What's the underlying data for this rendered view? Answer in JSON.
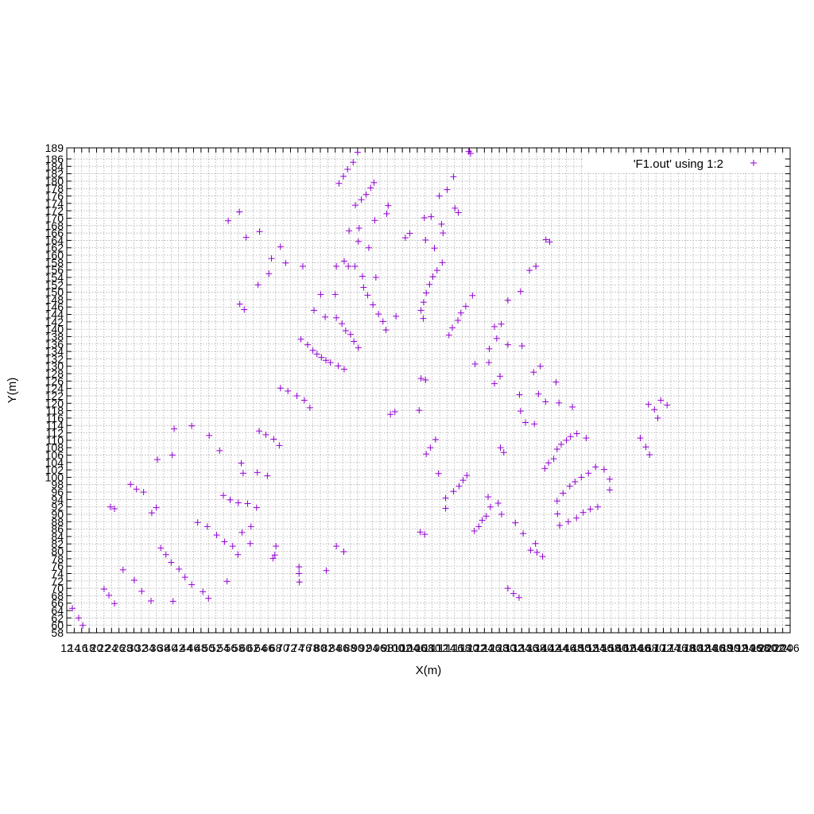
{
  "chart_data": {
    "type": "scatter",
    "title": "",
    "xlabel": "X(m)",
    "ylabel": "Y(m)",
    "xlim": [
      12,
      206
    ],
    "ylim": [
      58,
      189
    ],
    "x_ticks_start": 12,
    "x_ticks_step": 2,
    "y_ticks": [
      58,
      60,
      62,
      64,
      66,
      68,
      70,
      72,
      74,
      76,
      78,
      80,
      82,
      84,
      86,
      88,
      90,
      92,
      94,
      96,
      98,
      100,
      102,
      104,
      106,
      108,
      110,
      112,
      114,
      116,
      118,
      120,
      122,
      124,
      126,
      128,
      130,
      132,
      134,
      136,
      138,
      140,
      142,
      144,
      146,
      148,
      150,
      152,
      154,
      156,
      158,
      160,
      162,
      164,
      166,
      168,
      170,
      172,
      174,
      176,
      178,
      180,
      182,
      184,
      186,
      189
    ],
    "grid": true,
    "legend": {
      "position": "top-right",
      "entries": [
        "'F1.out' using 1:2"
      ]
    },
    "colors": {
      "series": "#9400d3",
      "grid": "#a0a0a0"
    },
    "series": [
      {
        "name": "'F1.out' using 1:2",
        "marker": "plus",
        "points": [
          [
            13.5,
            64.6
          ],
          [
            15.2,
            62.0
          ],
          [
            16.3,
            60.0
          ],
          [
            22.0,
            69.8
          ],
          [
            23.3,
            68.1
          ],
          [
            23.7,
            92.0
          ],
          [
            24.8,
            91.5
          ],
          [
            24.8,
            65.9
          ],
          [
            27.1,
            75.0
          ],
          [
            29.1,
            98.1
          ],
          [
            30.1,
            72.2
          ],
          [
            30.7,
            96.8
          ],
          [
            32.1,
            69.2
          ],
          [
            32.6,
            96.0
          ],
          [
            34.6,
            66.6
          ],
          [
            34.8,
            90.4
          ],
          [
            36.0,
            91.8
          ],
          [
            36.3,
            104.8
          ],
          [
            37.2,
            80.9
          ],
          [
            38.6,
            79.1
          ],
          [
            40.0,
            77.0
          ],
          [
            40.3,
            106.0
          ],
          [
            40.5,
            66.5
          ],
          [
            40.8,
            113.1
          ],
          [
            42.1,
            75.2
          ],
          [
            43.7,
            73.0
          ],
          [
            45.5,
            113.9
          ],
          [
            45.5,
            71.0
          ],
          [
            47.1,
            87.8
          ],
          [
            48.5,
            69.1
          ],
          [
            49.7,
            86.7
          ],
          [
            50.0,
            67.3
          ],
          [
            50.2,
            111.3
          ],
          [
            52.2,
            84.4
          ],
          [
            53.0,
            107.2
          ],
          [
            54.0,
            95.1
          ],
          [
            54.3,
            82.6
          ],
          [
            55.0,
            71.9
          ],
          [
            55.3,
            169.3
          ],
          [
            55.8,
            93.9
          ],
          [
            56.5,
            81.4
          ],
          [
            57.9,
            79.1
          ],
          [
            58.0,
            93.1
          ],
          [
            58.3,
            171.7
          ],
          [
            58.4,
            146.8
          ],
          [
            58.8,
            103.8
          ],
          [
            59.0,
            85.1
          ],
          [
            59.3,
            101.1
          ],
          [
            59.6,
            145.3
          ],
          [
            60.1,
            164.8
          ],
          [
            60.5,
            92.9
          ],
          [
            61.2,
            82.1
          ],
          [
            61.4,
            86.7
          ],
          [
            62.9,
            91.8
          ],
          [
            63.1,
            101.3
          ],
          [
            63.3,
            152.0
          ],
          [
            63.6,
            112.5
          ],
          [
            63.7,
            166.4
          ],
          [
            65.4,
            111.5
          ],
          [
            65.8,
            100.4
          ],
          [
            66.2,
            155.0
          ],
          [
            66.9,
            159.1
          ],
          [
            67.3,
            78.1
          ],
          [
            67.5,
            110.3
          ],
          [
            67.8,
            79.0
          ],
          [
            68.1,
            81.4
          ],
          [
            69.0,
            108.6
          ],
          [
            69.3,
            124.1
          ],
          [
            69.3,
            162.3
          ],
          [
            70.7,
            157.9
          ],
          [
            71.3,
            123.3
          ],
          [
            73.7,
            122.0
          ],
          [
            74.3,
            75.8
          ],
          [
            74.3,
            74.0
          ],
          [
            74.4,
            71.7
          ],
          [
            74.8,
            137.3
          ],
          [
            75.3,
            157.0
          ],
          [
            75.7,
            120.8
          ],
          [
            76.6,
            135.8
          ],
          [
            77.2,
            118.8
          ],
          [
            78.0,
            134.3
          ],
          [
            78.3,
            145.1
          ],
          [
            79.1,
            133.3
          ],
          [
            80.1,
            149.4
          ],
          [
            80.3,
            132.4
          ],
          [
            81.3,
            143.3
          ],
          [
            81.5,
            131.6
          ],
          [
            81.6,
            74.8
          ],
          [
            82.7,
            131.0
          ],
          [
            84.0,
            149.4
          ],
          [
            84.3,
            143.1
          ],
          [
            84.3,
            81.4
          ],
          [
            84.3,
            157.0
          ],
          [
            84.8,
            130.1
          ],
          [
            85.0,
            179.4
          ],
          [
            85.8,
            141.5
          ],
          [
            86.2,
            181.3
          ],
          [
            86.3,
            79.9
          ],
          [
            86.4,
            129.2
          ],
          [
            86.4,
            158.4
          ],
          [
            86.8,
            139.6
          ],
          [
            87.3,
            183.2
          ],
          [
            87.5,
            157.0
          ],
          [
            87.7,
            166.6
          ],
          [
            88.1,
            138.6
          ],
          [
            88.8,
            185.1
          ],
          [
            89.0,
            136.7
          ],
          [
            89.3,
            157.0
          ],
          [
            89.4,
            173.5
          ],
          [
            90.0,
            187.8
          ],
          [
            90.2,
            163.7
          ],
          [
            90.2,
            135.0
          ],
          [
            90.4,
            167.3
          ],
          [
            91.0,
            175.0
          ],
          [
            91.3,
            154.3
          ],
          [
            91.6,
            151.3
          ],
          [
            92.3,
            176.4
          ],
          [
            92.7,
            149.2
          ],
          [
            93.0,
            162.0
          ],
          [
            93.5,
            178.2
          ],
          [
            94.1,
            146.6
          ],
          [
            94.4,
            179.6
          ],
          [
            94.6,
            169.4
          ],
          [
            94.9,
            154.0
          ],
          [
            95.6,
            144.1
          ],
          [
            96.8,
            142.1
          ],
          [
            97.6,
            139.8
          ],
          [
            97.8,
            171.2
          ],
          [
            98.2,
            173.4
          ],
          [
            98.8,
            117.0
          ],
          [
            100.0,
            117.7
          ],
          [
            100.3,
            143.5
          ],
          [
            102.8,
            164.7
          ],
          [
            104.0,
            165.9
          ],
          [
            106.5,
            118.1
          ],
          [
            106.8,
            85.2
          ],
          [
            107.0,
            126.7
          ],
          [
            107.0,
            145.1
          ],
          [
            107.6,
            142.9
          ],
          [
            107.7,
            147.3
          ],
          [
            107.9,
            170.1
          ],
          [
            108.0,
            84.6
          ],
          [
            108.2,
            164.1
          ],
          [
            108.2,
            126.3
          ],
          [
            108.4,
            149.8
          ],
          [
            108.4,
            106.3
          ],
          [
            109.3,
            152.1
          ],
          [
            109.5,
            108.0
          ],
          [
            109.7,
            170.4
          ],
          [
            110.2,
            154.2
          ],
          [
            110.6,
            161.9
          ],
          [
            110.9,
            110.2
          ],
          [
            111.3,
            155.9
          ],
          [
            111.7,
            101.0
          ],
          [
            111.9,
            176.0
          ],
          [
            112.5,
            168.4
          ],
          [
            112.7,
            158.0
          ],
          [
            112.9,
            166.0
          ],
          [
            113.6,
            91.6
          ],
          [
            113.6,
            94.4
          ],
          [
            114.0,
            177.7
          ],
          [
            114.5,
            138.4
          ],
          [
            115.4,
            140.4
          ],
          [
            115.7,
            96.2
          ],
          [
            115.7,
            181.2
          ],
          [
            116.1,
            172.7
          ],
          [
            116.9,
            142.4
          ],
          [
            117.0,
            171.5
          ],
          [
            117.2,
            97.6
          ],
          [
            117.7,
            144.4
          ],
          [
            118.3,
            99.2
          ],
          [
            119.0,
            146.2
          ],
          [
            119.3,
            100.5
          ],
          [
            119.8,
            188.0
          ],
          [
            120.3,
            187.5
          ],
          [
            120.8,
            149.1
          ],
          [
            121.3,
            85.5
          ],
          [
            121.5,
            130.6
          ],
          [
            122.5,
            86.7
          ],
          [
            123.4,
            88.4
          ],
          [
            124.5,
            89.5
          ],
          [
            125.0,
            94.7
          ],
          [
            125.2,
            131.0
          ],
          [
            125.3,
            134.7
          ],
          [
            125.6,
            92.0
          ],
          [
            126.7,
            140.7
          ],
          [
            126.7,
            125.3
          ],
          [
            127.3,
            137.5
          ],
          [
            127.7,
            93.0
          ],
          [
            128.2,
            127.3
          ],
          [
            128.3,
            108.0
          ],
          [
            128.5,
            141.4
          ],
          [
            128.6,
            90.0
          ],
          [
            129.2,
            106.7
          ],
          [
            130.3,
            147.8
          ],
          [
            130.3,
            135.8
          ],
          [
            130.3,
            70.0
          ],
          [
            131.8,
            68.6
          ],
          [
            132.3,
            87.7
          ],
          [
            133.3,
            67.5
          ],
          [
            133.4,
            122.3
          ],
          [
            133.7,
            117.9
          ],
          [
            133.7,
            150.2
          ],
          [
            134.1,
            135.5
          ],
          [
            134.4,
            84.8
          ],
          [
            135.0,
            114.8
          ],
          [
            136.1,
            155.9
          ],
          [
            136.4,
            80.3
          ],
          [
            137.2,
            128.4
          ],
          [
            137.4,
            114.4
          ],
          [
            137.7,
            82.1
          ],
          [
            137.8,
            157.0
          ],
          [
            138.1,
            79.7
          ],
          [
            138.5,
            122.5
          ],
          [
            139.0,
            130.0
          ],
          [
            139.6,
            78.6
          ],
          [
            140.2,
            102.4
          ],
          [
            140.4,
            120.4
          ],
          [
            140.5,
            164.2
          ],
          [
            141.2,
            103.9
          ],
          [
            141.5,
            163.6
          ],
          [
            142.6,
            105.0
          ],
          [
            143.2,
            125.7
          ],
          [
            143.5,
            107.6
          ],
          [
            143.5,
            93.6
          ],
          [
            143.6,
            90.1
          ],
          [
            144.0,
            120.1
          ],
          [
            144.2,
            87.0
          ],
          [
            144.6,
            108.9
          ],
          [
            145.1,
            95.7
          ],
          [
            146.0,
            110.0
          ],
          [
            146.5,
            88.0
          ],
          [
            146.9,
            97.6
          ],
          [
            147.1,
            111.0
          ],
          [
            147.6,
            119.0
          ],
          [
            148.3,
            98.8
          ],
          [
            148.7,
            89.0
          ],
          [
            148.8,
            111.8
          ],
          [
            150.0,
            100.0
          ],
          [
            150.5,
            90.5
          ],
          [
            151.3,
            110.6
          ],
          [
            151.9,
            101.1
          ],
          [
            152.4,
            91.4
          ],
          [
            153.8,
            102.8
          ],
          [
            154.4,
            92.0
          ],
          [
            156.1,
            102.1
          ],
          [
            157.6,
            96.6
          ],
          [
            157.6,
            99.5
          ],
          [
            165.8,
            110.6
          ],
          [
            167.3,
            108.2
          ],
          [
            168.3,
            106.1
          ],
          [
            168.0,
            119.7
          ],
          [
            169.6,
            118.3
          ],
          [
            170.5,
            116.0
          ],
          [
            171.3,
            120.8
          ],
          [
            173.0,
            119.5
          ]
        ]
      }
    ]
  }
}
